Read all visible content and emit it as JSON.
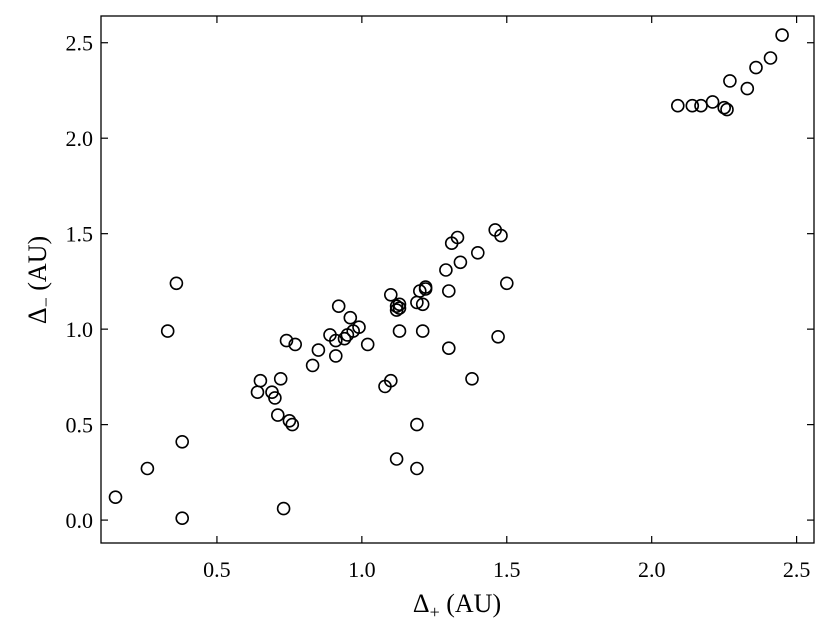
{
  "chart_data": {
    "type": "scatter",
    "title": "",
    "xlabel": {
      "main": "Δ",
      "sub": "+",
      "unit": " (AU)"
    },
    "ylabel": {
      "main": "Δ",
      "sub": "−",
      "unit": " (AU)"
    },
    "xlim": [
      0.1,
      2.56
    ],
    "ylim": [
      -0.12,
      2.64
    ],
    "x_ticks": [
      0.5,
      1.0,
      1.5,
      2.0,
      2.5
    ],
    "x_tick_labels": [
      "0.5",
      "1.0",
      "1.5",
      "2.0",
      "2.5"
    ],
    "y_ticks": [
      0.0,
      0.5,
      1.0,
      1.5,
      2.0,
      2.5
    ],
    "y_tick_labels": [
      "0.0",
      "0.5",
      "1.0",
      "1.5",
      "2.0",
      "2.5"
    ],
    "grid": false,
    "legend": "none",
    "marker": "open-circle",
    "color": "#000000",
    "series": [
      {
        "x": [
          0.15,
          0.26,
          0.33,
          0.36,
          0.38,
          0.38,
          0.64,
          0.65,
          0.69,
          0.7,
          0.71,
          0.72,
          0.73,
          0.74,
          0.75,
          0.76,
          0.77,
          0.83,
          0.85,
          0.89,
          0.91,
          0.92,
          0.91,
          0.94,
          0.95,
          0.96,
          0.97,
          0.99,
          1.02,
          1.08,
          1.1,
          1.1,
          1.12,
          1.13,
          1.13,
          1.12,
          1.13,
          1.19,
          1.19,
          1.2,
          1.21,
          1.22,
          1.21,
          1.22,
          1.29,
          1.3,
          1.3,
          1.31,
          1.33,
          1.34,
          1.38,
          1.4,
          1.46,
          1.47,
          1.48,
          1.5,
          1.12,
          1.19,
          2.09,
          2.14,
          2.17,
          2.21,
          2.25,
          2.26,
          2.27,
          2.33,
          2.36,
          2.41,
          2.45
        ],
        "y": [
          0.12,
          0.27,
          0.99,
          1.24,
          0.01,
          0.41,
          0.67,
          0.73,
          0.67,
          0.64,
          0.55,
          0.74,
          0.06,
          0.94,
          0.52,
          0.5,
          0.92,
          0.81,
          0.89,
          0.97,
          0.86,
          1.12,
          0.94,
          0.95,
          0.97,
          1.06,
          0.99,
          1.01,
          0.92,
          0.7,
          0.73,
          1.18,
          1.12,
          1.11,
          1.13,
          0.32,
          0.99,
          0.5,
          1.14,
          1.2,
          1.13,
          1.22,
          0.99,
          1.21,
          1.31,
          1.2,
          0.9,
          1.45,
          1.48,
          1.35,
          0.74,
          1.4,
          1.52,
          0.96,
          1.49,
          1.24,
          1.1,
          0.27,
          2.17,
          2.17,
          2.17,
          2.19,
          2.16,
          2.15,
          2.3,
          2.26,
          2.37,
          2.42,
          2.54
        ]
      }
    ]
  }
}
